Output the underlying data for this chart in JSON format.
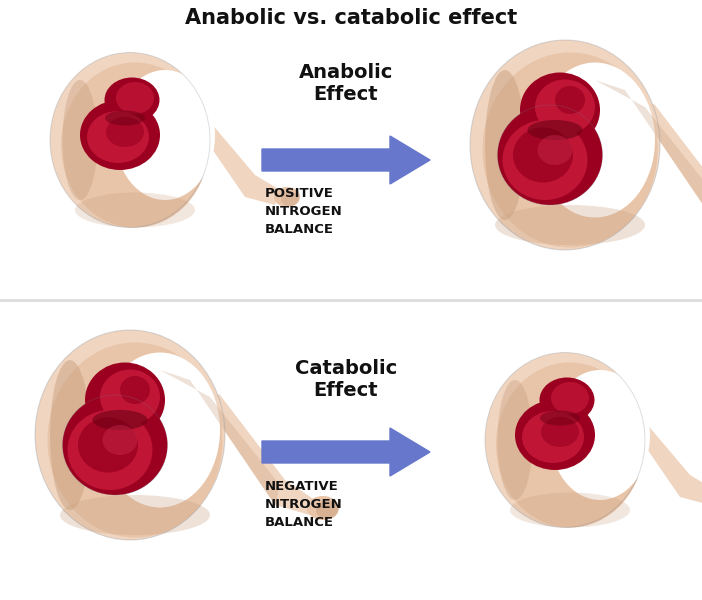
{
  "title": "Anabolic vs. catabolic effect",
  "title_fontsize": 15,
  "title_fontweight": "bold",
  "background_color": "#ffffff",
  "top_panel": {
    "effect_label": "Anabolic\nEffect",
    "balance_label": "POSITIVE\nNITROGEN\nBALANCE",
    "arrow_color": "#6677cc",
    "label_color": "#111111"
  },
  "bottom_panel": {
    "effect_label": "Catabolic\nEffect",
    "balance_label": "NEGATIVE\nNITROGEN\nBALANCE",
    "arrow_color": "#6677cc",
    "label_color": "#111111"
  },
  "skin_light": "#f0d5c0",
  "skin_mid": "#e8c4a8",
  "skin_dark": "#c9a080",
  "skin_shadow": "#b8896a",
  "muscle_dark": "#6b0015",
  "muscle_mid": "#9b0020",
  "muscle_light": "#c01535",
  "muscle_bright": "#d03050",
  "outline_color": "#708090",
  "divider_color": "#dddddd",
  "text_color": "#111111",
  "panel_bg": "#ffffff"
}
